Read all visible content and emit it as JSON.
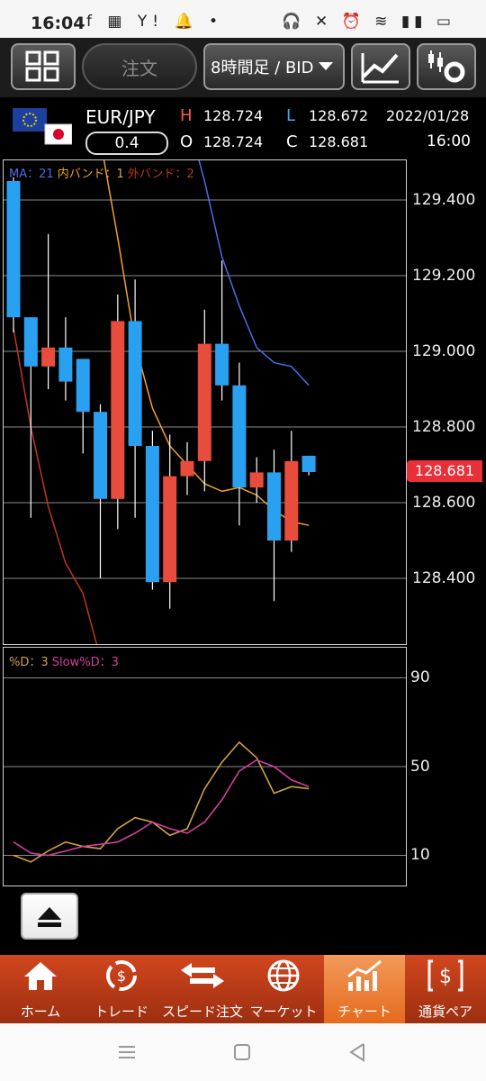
{
  "status_bar": {
    "time": "16:04",
    "left_icons": "f ▦ Y! 🔔 •",
    "right_icons": "🎧 ✕ ⏰ ≋ ▮▮ ▭"
  },
  "toolbar": {
    "order_label": "注文",
    "period_label": "8時間足 / BID"
  },
  "header": {
    "pair": "EUR/JPY",
    "spread": "0.4",
    "high_label": "H",
    "high": "128.724",
    "low_label": "L",
    "low": "128.672",
    "open_label": "O",
    "open": "128.724",
    "close_label": "C",
    "close": "128.681",
    "date": "2022/01/28",
    "time": "16:00"
  },
  "main_chart": {
    "legend": {
      "ma": "MA：21",
      "inner_band": "内バンド：1",
      "outer_band": "外バンド：2"
    },
    "price_ticks": [
      "129.400",
      "129.200",
      "129.000",
      "128.800",
      "128.600",
      "128.400"
    ],
    "current_price": "128.681"
  },
  "sub_chart": {
    "legend": {
      "d": "%D：3",
      "slow_d": "Slow%D：3"
    },
    "ticks": [
      "90",
      "50",
      "10"
    ]
  },
  "tabs": [
    {
      "label": "ホーム",
      "icon": "home-icon"
    },
    {
      "label": "トレード",
      "icon": "trade-icon"
    },
    {
      "label": "スピード注文",
      "icon": "speed-order-icon"
    },
    {
      "label": "マーケット",
      "icon": "globe-icon"
    },
    {
      "label": "チャート",
      "icon": "chart-icon"
    },
    {
      "label": "通貨ペア",
      "icon": "currency-pair-icon"
    }
  ],
  "colors": {
    "up": "#e84c3d",
    "down": "#2aa1f0",
    "ma": "#f0a030",
    "inner_band": "#4a6ee8",
    "outer_band": "#c0371e",
    "d_line": "#d4a043",
    "slow_d_line": "#d040a0",
    "accent": "#e46a1c"
  },
  "chart_data": [
    {
      "type": "candlestick",
      "title": "EUR/JPY 8時間足 BID",
      "candles": [
        {
          "o": 129.45,
          "h": 129.46,
          "l": 129.05,
          "c": 129.09
        },
        {
          "o": 129.09,
          "h": 129.09,
          "l": 128.56,
          "c": 128.96
        },
        {
          "o": 128.96,
          "h": 129.31,
          "l": 128.9,
          "c": 129.01
        },
        {
          "o": 129.01,
          "h": 129.09,
          "l": 128.87,
          "c": 128.92
        },
        {
          "o": 128.98,
          "h": 128.98,
          "l": 128.73,
          "c": 128.84
        },
        {
          "o": 128.84,
          "h": 128.86,
          "l": 128.4,
          "c": 128.61
        },
        {
          "o": 128.61,
          "h": 129.15,
          "l": 128.53,
          "c": 129.08
        },
        {
          "o": 129.08,
          "h": 129.19,
          "l": 128.56,
          "c": 128.75
        },
        {
          "o": 128.75,
          "h": 128.79,
          "l": 128.37,
          "c": 128.39
        },
        {
          "o": 128.39,
          "h": 128.78,
          "l": 128.32,
          "c": 128.67
        },
        {
          "o": 128.67,
          "h": 128.76,
          "l": 128.62,
          "c": 128.71
        },
        {
          "o": 128.71,
          "h": 129.11,
          "l": 128.63,
          "c": 129.02
        },
        {
          "o": 129.02,
          "h": 129.24,
          "l": 128.87,
          "c": 128.91
        },
        {
          "o": 128.91,
          "h": 128.97,
          "l": 128.54,
          "c": 128.64
        },
        {
          "o": 128.64,
          "h": 128.72,
          "l": 128.6,
          "c": 128.68
        },
        {
          "o": 128.68,
          "h": 128.74,
          "l": 128.34,
          "c": 128.5
        },
        {
          "o": 128.5,
          "h": 128.79,
          "l": 128.47,
          "c": 128.71
        },
        {
          "o": 128.724,
          "h": 128.724,
          "l": 128.672,
          "c": 128.681
        }
      ],
      "ma": [
        null,
        null,
        null,
        null,
        129.72,
        129.56,
        129.3,
        129.02,
        128.85,
        128.75,
        128.7,
        128.65,
        128.63,
        128.64,
        128.62,
        128.58,
        128.55,
        128.54
      ],
      "upper_band_outer": [
        null,
        null,
        null,
        null,
        null,
        null,
        null,
        null,
        null,
        null,
        null,
        null,
        null,
        null,
        null,
        129.76,
        129.68,
        129.53
      ],
      "upper_band_inner": [
        null,
        null,
        null,
        null,
        null,
        null,
        null,
        null,
        null,
        129.82,
        129.62,
        129.45,
        129.25,
        129.12,
        129.01,
        128.97,
        128.96,
        128.91
      ],
      "lower_band_outer": [
        129.06,
        128.8,
        128.59,
        128.44,
        128.36,
        128.19,
        128.02,
        127.89,
        127.8
      ],
      "ylim": [
        128.2,
        129.5
      ],
      "grid": true
    },
    {
      "type": "line",
      "series": [
        {
          "name": "%D",
          "values": [
            10,
            7,
            12,
            16,
            14,
            13,
            22,
            27,
            25,
            19,
            22,
            40,
            52,
            61,
            54,
            38,
            41,
            40
          ]
        },
        {
          "name": "Slow%D",
          "values": [
            16,
            11,
            10,
            12,
            14,
            15,
            16,
            20,
            25,
            22,
            20,
            25,
            35,
            48,
            53,
            50,
            44,
            41
          ]
        }
      ],
      "ylim": [
        0,
        100
      ],
      "grid": true
    }
  ]
}
